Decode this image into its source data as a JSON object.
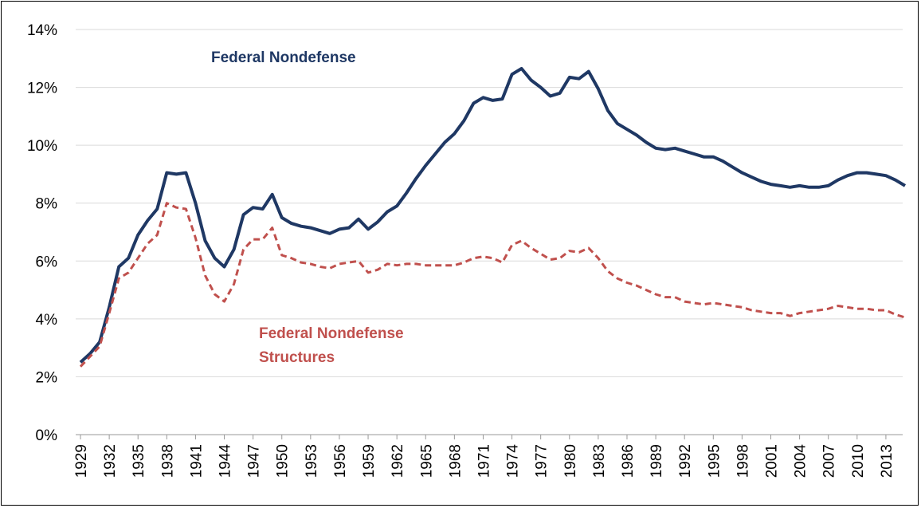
{
  "chart_data": {
    "type": "line",
    "x": [
      1929,
      1930,
      1931,
      1932,
      1933,
      1934,
      1935,
      1936,
      1937,
      1938,
      1939,
      1940,
      1941,
      1942,
      1943,
      1944,
      1945,
      1946,
      1947,
      1948,
      1949,
      1950,
      1951,
      1952,
      1953,
      1954,
      1955,
      1956,
      1957,
      1958,
      1959,
      1960,
      1961,
      1962,
      1963,
      1964,
      1965,
      1966,
      1967,
      1968,
      1969,
      1970,
      1971,
      1972,
      1973,
      1974,
      1975,
      1976,
      1977,
      1978,
      1979,
      1980,
      1981,
      1982,
      1983,
      1984,
      1985,
      1986,
      1987,
      1988,
      1989,
      1990,
      1991,
      1992,
      1993,
      1994,
      1995,
      1996,
      1997,
      1998,
      1999,
      2000,
      2001,
      2002,
      2003,
      2004,
      2005,
      2006,
      2007,
      2008,
      2009,
      2010,
      2011,
      2012,
      2013,
      2014,
      2015
    ],
    "series": [
      {
        "name": "Federal Nondefense",
        "color": "#1f3864",
        "dash": false,
        "values": [
          2.5,
          2.8,
          3.2,
          4.4,
          5.8,
          6.1,
          6.9,
          7.4,
          7.8,
          9.05,
          9.0,
          9.05,
          8.0,
          6.7,
          6.1,
          5.8,
          6.4,
          7.6,
          7.85,
          7.8,
          8.3,
          7.5,
          7.3,
          7.2,
          7.15,
          7.05,
          6.95,
          7.1,
          7.15,
          7.45,
          7.1,
          7.35,
          7.7,
          7.9,
          8.35,
          8.85,
          9.3,
          9.7,
          10.1,
          10.4,
          10.85,
          11.45,
          11.65,
          11.55,
          11.6,
          12.45,
          12.65,
          12.25,
          12.0,
          11.7,
          11.8,
          12.35,
          12.3,
          12.55,
          11.95,
          11.2,
          10.75,
          10.55,
          10.35,
          10.1,
          9.9,
          9.85,
          9.9,
          9.8,
          9.7,
          9.6,
          9.6,
          9.45,
          9.25,
          9.05,
          8.9,
          8.75,
          8.65,
          8.6,
          8.55,
          8.6,
          8.55,
          8.55,
          8.6,
          8.8,
          8.95,
          9.05,
          9.05,
          9.0,
          8.95,
          8.8,
          8.6
        ]
      },
      {
        "name": "Federal Nondefense Structures",
        "color": "#c0504d",
        "dash": true,
        "values": [
          2.35,
          2.7,
          3.05,
          4.2,
          5.4,
          5.6,
          6.1,
          6.6,
          6.9,
          8.0,
          7.85,
          7.8,
          6.8,
          5.5,
          4.85,
          4.6,
          5.2,
          6.4,
          6.75,
          6.75,
          7.15,
          6.2,
          6.1,
          5.95,
          5.9,
          5.8,
          5.75,
          5.9,
          5.95,
          6.0,
          5.6,
          5.7,
          5.9,
          5.85,
          5.9,
          5.9,
          5.85,
          5.85,
          5.85,
          5.85,
          5.95,
          6.1,
          6.15,
          6.1,
          5.95,
          6.55,
          6.7,
          6.45,
          6.25,
          6.05,
          6.1,
          6.35,
          6.3,
          6.45,
          6.1,
          5.65,
          5.4,
          5.25,
          5.15,
          5.0,
          4.85,
          4.75,
          4.75,
          4.6,
          4.55,
          4.5,
          4.55,
          4.5,
          4.45,
          4.4,
          4.3,
          4.25,
          4.2,
          4.2,
          4.1,
          4.2,
          4.25,
          4.3,
          4.35,
          4.45,
          4.4,
          4.35,
          4.35,
          4.3,
          4.3,
          4.15,
          4.05
        ]
      }
    ],
    "xlim": [
      1928.5,
      2015.5
    ],
    "xticks": [
      1929,
      1932,
      1935,
      1938,
      1941,
      1944,
      1947,
      1950,
      1953,
      1956,
      1959,
      1962,
      1965,
      1968,
      1971,
      1974,
      1977,
      1980,
      1983,
      1986,
      1989,
      1992,
      1995,
      1998,
      2001,
      2004,
      2007,
      2010,
      2013
    ],
    "ylim": [
      0,
      14
    ],
    "yticks": [
      {
        "value": 0,
        "label": "0%"
      },
      {
        "value": 2,
        "label": "2%"
      },
      {
        "value": 4,
        "label": "4%"
      },
      {
        "value": 6,
        "label": "6%"
      },
      {
        "value": 8,
        "label": "8%"
      },
      {
        "value": 10,
        "label": "10%"
      },
      {
        "value": 12,
        "label": "12%"
      },
      {
        "value": 14,
        "label": "14%"
      }
    ],
    "grid": true
  }
}
